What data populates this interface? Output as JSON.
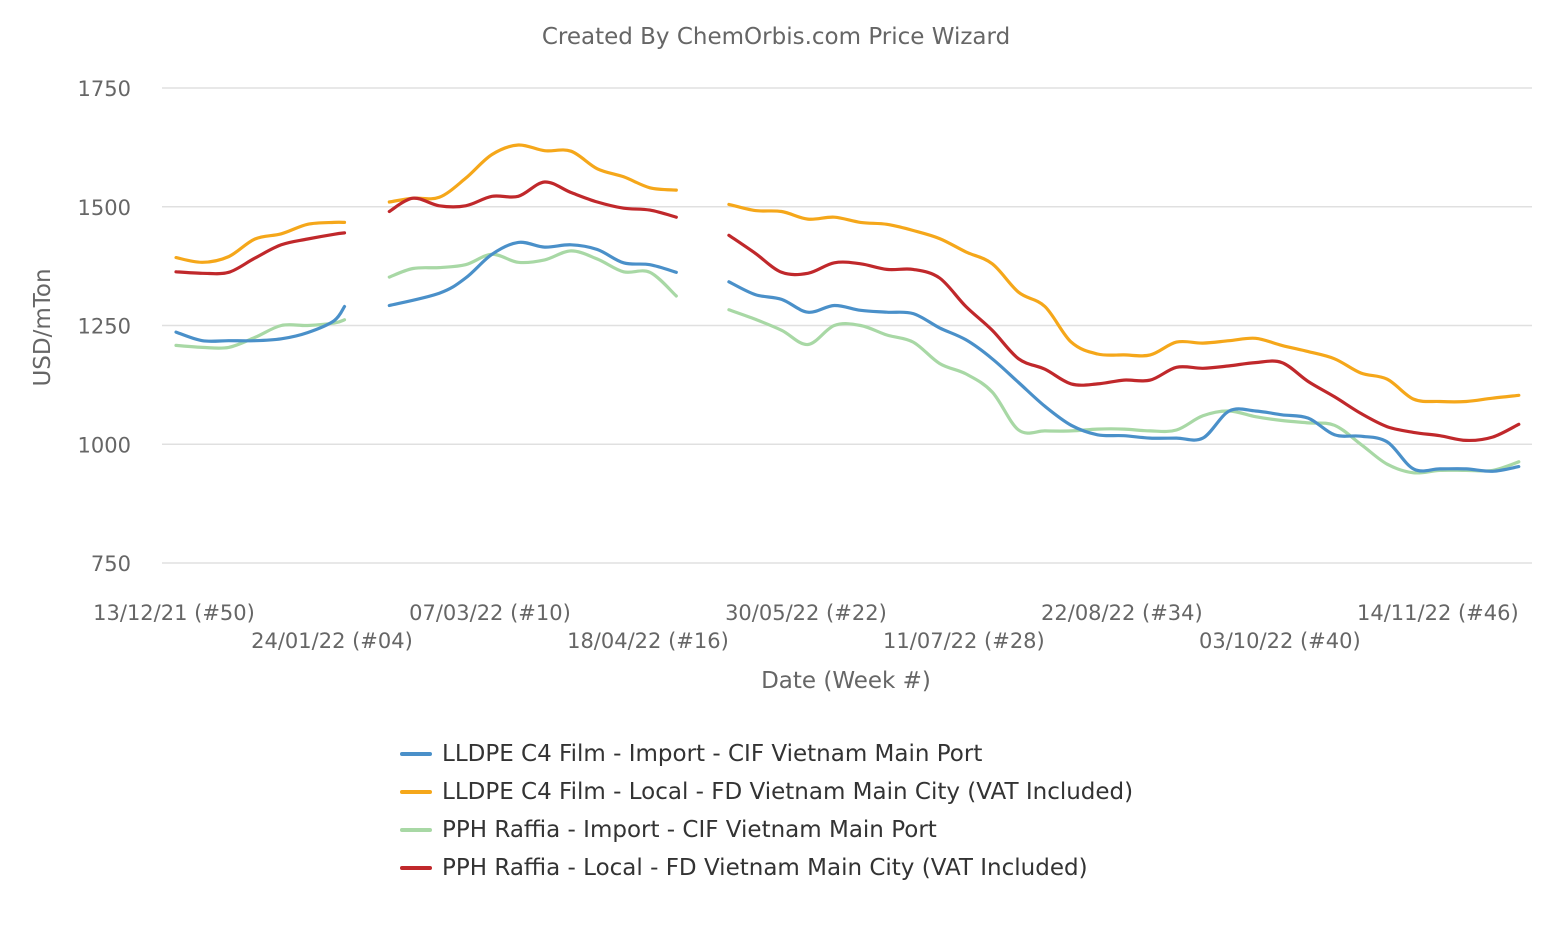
{
  "chart_data": {
    "type": "line",
    "title": "Created By ChemOrbis.com Price Wizard",
    "xlabel": "Date (Week #)",
    "ylabel": "USD/mTon",
    "ylim": [
      750,
      1750
    ],
    "yticks": [
      1750,
      1500,
      1250,
      1000,
      750
    ],
    "grid": true,
    "legend_position": "bottom",
    "x_tick_labels": [
      {
        "label": "13/12/21 (#50)",
        "week": 0
      },
      {
        "label": "24/01/22 (#04)",
        "week": 6
      },
      {
        "label": "07/03/22 (#10)",
        "week": 12
      },
      {
        "label": "18/04/22 (#16)",
        "week": 18
      },
      {
        "label": "30/05/22 (#22)",
        "week": 24
      },
      {
        "label": "11/07/22 (#28)",
        "week": 30
      },
      {
        "label": "22/08/22 (#34)",
        "week": 36
      },
      {
        "label": "03/10/22 (#40)",
        "week": 42
      },
      {
        "label": "14/11/22 (#46)",
        "week": 48
      }
    ],
    "series": [
      {
        "name": "LLDPE C4 Film - Import - CIF Vietnam Main Port",
        "color": "#4a90c9",
        "segments": [
          [
            [
              0,
              1236
            ],
            [
              1,
              1218
            ],
            [
              2,
              1218
            ],
            [
              3,
              1218
            ],
            [
              4,
              1222
            ],
            [
              5,
              1235
            ],
            [
              6,
              1260
            ],
            [
              6.4,
              1290
            ]
          ],
          [
            [
              8.1,
              1292
            ],
            [
              10,
              1318
            ],
            [
              11,
              1350
            ],
            [
              12,
              1400
            ],
            [
              13,
              1425
            ],
            [
              14,
              1415
            ],
            [
              15,
              1420
            ],
            [
              16,
              1410
            ],
            [
              17,
              1382
            ],
            [
              18,
              1378
            ],
            [
              19,
              1362
            ]
          ],
          [
            [
              21,
              1342
            ],
            [
              22,
              1315
            ],
            [
              23,
              1305
            ],
            [
              24,
              1278
            ],
            [
              25,
              1292
            ],
            [
              26,
              1282
            ],
            [
              27,
              1278
            ],
            [
              28,
              1275
            ],
            [
              29,
              1245
            ],
            [
              30,
              1220
            ],
            [
              31,
              1180
            ],
            [
              32,
              1130
            ],
            [
              33,
              1080
            ],
            [
              34,
              1040
            ],
            [
              35,
              1020
            ],
            [
              36,
              1018
            ],
            [
              37,
              1013
            ],
            [
              38,
              1013
            ],
            [
              39,
              1013
            ],
            [
              40,
              1070
            ],
            [
              41,
              1070
            ],
            [
              42,
              1062
            ],
            [
              43,
              1055
            ],
            [
              44,
              1020
            ],
            [
              45,
              1017
            ],
            [
              46,
              1005
            ],
            [
              47,
              948
            ],
            [
              48,
              948
            ],
            [
              49,
              948
            ],
            [
              50,
              943
            ],
            [
              51,
              953
            ]
          ]
        ]
      },
      {
        "name": "LLDPE C4 Film - Local - FD Vietnam Main City (VAT Included)",
        "color": "#f5a71a",
        "segments": [
          [
            [
              0,
              1393
            ],
            [
              1,
              1383
            ],
            [
              2,
              1395
            ],
            [
              3,
              1432
            ],
            [
              4,
              1443
            ],
            [
              5,
              1463
            ],
            [
              6,
              1467
            ],
            [
              6.4,
              1467
            ]
          ],
          [
            [
              8.1,
              1510
            ],
            [
              9,
              1518
            ],
            [
              10,
              1520
            ],
            [
              11,
              1560
            ],
            [
              12,
              1610
            ],
            [
              13,
              1630
            ],
            [
              14,
              1618
            ],
            [
              15,
              1617
            ],
            [
              16,
              1580
            ],
            [
              17,
              1563
            ],
            [
              18,
              1540
            ],
            [
              19,
              1535
            ]
          ],
          [
            [
              21,
              1505
            ],
            [
              22,
              1492
            ],
            [
              23,
              1490
            ],
            [
              24,
              1474
            ],
            [
              25,
              1478
            ],
            [
              26,
              1467
            ],
            [
              27,
              1463
            ],
            [
              28,
              1450
            ],
            [
              29,
              1433
            ],
            [
              30,
              1405
            ],
            [
              31,
              1380
            ],
            [
              32,
              1320
            ],
            [
              33,
              1290
            ],
            [
              34,
              1215
            ],
            [
              35,
              1190
            ],
            [
              36,
              1188
            ],
            [
              37,
              1188
            ],
            [
              38,
              1215
            ],
            [
              39,
              1213
            ],
            [
              40,
              1218
            ],
            [
              41,
              1223
            ],
            [
              42,
              1208
            ],
            [
              43,
              1195
            ],
            [
              44,
              1180
            ],
            [
              45,
              1150
            ],
            [
              46,
              1137
            ],
            [
              47,
              1095
            ],
            [
              48,
              1090
            ],
            [
              49,
              1090
            ],
            [
              50,
              1097
            ],
            [
              51,
              1103
            ]
          ]
        ]
      },
      {
        "name": "PPH Raffia - Import - CIF Vietnam Main Port",
        "color": "#a8d8a5",
        "segments": [
          [
            [
              0,
              1208
            ],
            [
              1,
              1204
            ],
            [
              2,
              1204
            ],
            [
              3,
              1225
            ],
            [
              4,
              1250
            ],
            [
              5,
              1250
            ],
            [
              6,
              1255
            ],
            [
              6.4,
              1262
            ]
          ],
          [
            [
              8.1,
              1352
            ],
            [
              9,
              1370
            ],
            [
              10,
              1372
            ],
            [
              11,
              1378
            ],
            [
              12,
              1400
            ],
            [
              13,
              1383
            ],
            [
              14,
              1388
            ],
            [
              15,
              1407
            ],
            [
              16,
              1390
            ],
            [
              17,
              1363
            ],
            [
              18,
              1362
            ],
            [
              19,
              1312
            ]
          ],
          [
            [
              21,
              1283
            ],
            [
              22,
              1263
            ],
            [
              23,
              1240
            ],
            [
              24,
              1210
            ],
            [
              25,
              1250
            ],
            [
              26,
              1250
            ],
            [
              27,
              1230
            ],
            [
              28,
              1215
            ],
            [
              29,
              1170
            ],
            [
              30,
              1148
            ],
            [
              31,
              1110
            ],
            [
              32,
              1030
            ],
            [
              33,
              1028
            ],
            [
              34,
              1028
            ],
            [
              35,
              1032
            ],
            [
              36,
              1032
            ],
            [
              37,
              1028
            ],
            [
              38,
              1030
            ],
            [
              39,
              1060
            ],
            [
              40,
              1070
            ],
            [
              41,
              1058
            ],
            [
              42,
              1050
            ],
            [
              43,
              1045
            ],
            [
              44,
              1040
            ],
            [
              45,
              1000
            ],
            [
              46,
              958
            ],
            [
              47,
              940
            ],
            [
              48,
              945
            ],
            [
              49,
              945
            ],
            [
              50,
              945
            ],
            [
              51,
              963
            ]
          ]
        ]
      },
      {
        "name": "PPH Raffia - Local - FD Vietnam Main City (VAT Included)",
        "color": "#c0282b",
        "segments": [
          [
            [
              0,
              1363
            ],
            [
              1,
              1360
            ],
            [
              2,
              1362
            ],
            [
              3,
              1392
            ],
            [
              4,
              1420
            ],
            [
              5,
              1432
            ],
            [
              6,
              1442
            ],
            [
              6.4,
              1445
            ]
          ],
          [
            [
              8.1,
              1490
            ],
            [
              9,
              1518
            ],
            [
              10,
              1502
            ],
            [
              11,
              1502
            ],
            [
              12,
              1522
            ],
            [
              13,
              1522
            ],
            [
              14,
              1552
            ],
            [
              15,
              1530
            ],
            [
              16,
              1510
            ],
            [
              17,
              1497
            ],
            [
              18,
              1493
            ],
            [
              19,
              1478
            ]
          ],
          [
            [
              21,
              1440
            ],
            [
              22,
              1402
            ],
            [
              23,
              1362
            ],
            [
              24,
              1360
            ],
            [
              25,
              1382
            ],
            [
              26,
              1380
            ],
            [
              27,
              1368
            ],
            [
              28,
              1368
            ],
            [
              29,
              1350
            ],
            [
              30,
              1290
            ],
            [
              31,
              1240
            ],
            [
              32,
              1180
            ],
            [
              33,
              1158
            ],
            [
              34,
              1127
            ],
            [
              35,
              1127
            ],
            [
              36,
              1135
            ],
            [
              37,
              1135
            ],
            [
              38,
              1162
            ],
            [
              39,
              1160
            ],
            [
              40,
              1165
            ],
            [
              41,
              1172
            ],
            [
              42,
              1172
            ],
            [
              43,
              1132
            ],
            [
              44,
              1100
            ],
            [
              45,
              1065
            ],
            [
              46,
              1037
            ],
            [
              47,
              1025
            ],
            [
              48,
              1018
            ],
            [
              49,
              1008
            ],
            [
              50,
              1015
            ],
            [
              51,
              1042
            ]
          ]
        ]
      }
    ]
  }
}
